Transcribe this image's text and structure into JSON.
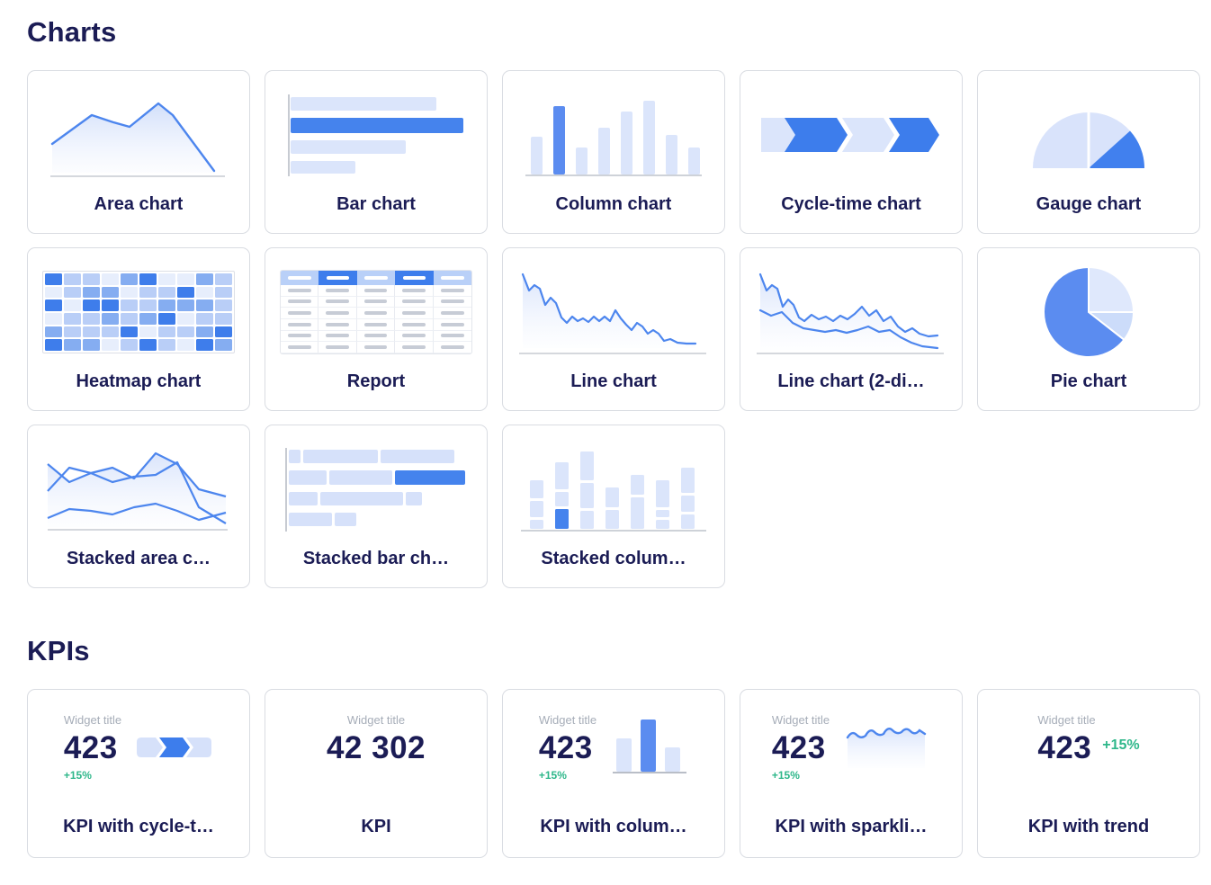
{
  "sections": {
    "charts": {
      "title": "Charts",
      "cards": [
        {
          "label": "Area chart"
        },
        {
          "label": "Bar chart"
        },
        {
          "label": "Column chart"
        },
        {
          "label": "Cycle-time chart"
        },
        {
          "label": "Gauge chart"
        },
        {
          "label": "Heatmap chart"
        },
        {
          "label": "Report"
        },
        {
          "label": "Line chart"
        },
        {
          "label": "Line chart (2-di…"
        },
        {
          "label": "Pie chart"
        },
        {
          "label": "Stacked area c…"
        },
        {
          "label": "Stacked bar ch…"
        },
        {
          "label": "Stacked colum…"
        }
      ]
    },
    "kpis": {
      "title": "KPIs",
      "cards": [
        {
          "widget_title": "Widget title",
          "value": "423",
          "delta": "+15%",
          "label": "KPI with cycle-t…"
        },
        {
          "widget_title": "Widget title",
          "value": "42 302",
          "label": "KPI"
        },
        {
          "widget_title": "Widget title",
          "value": "423",
          "delta": "+15%",
          "label": "KPI with colum…"
        },
        {
          "widget_title": "Widget title",
          "value": "423",
          "delta": "+15%",
          "label": "KPI with sparkli…"
        },
        {
          "widget_title": "Widget title",
          "value": "423",
          "delta": "+15%",
          "label": "KPI with trend"
        }
      ]
    }
  },
  "colors": {
    "accent_blue": "#4583ed",
    "dark_chevron_blue": "#3d7dec",
    "pie_blue": "#5b8cf0",
    "light_blue": "#dbe5fb",
    "lighter_blue": "#e9effd",
    "navy_text": "#1b1c55",
    "green_delta": "#2eb78a",
    "muted_gray": "#a6adb8",
    "card_border": "#d9dce2",
    "baseline_gray": "#c7cbd2"
  },
  "thumbnails": {
    "heatmap": {
      "shades": [
        "#e7eefc",
        "#b9cef7",
        "#85adf1",
        "#3e7deb"
      ],
      "pattern": [
        [
          3,
          1,
          1,
          0,
          2,
          3,
          0,
          0,
          2,
          1
        ],
        [
          0,
          1,
          2,
          2,
          0,
          1,
          1,
          3,
          0,
          1
        ],
        [
          3,
          0,
          3,
          3,
          1,
          1,
          2,
          2,
          2,
          1
        ],
        [
          0,
          1,
          1,
          2,
          1,
          2,
          3,
          0,
          1,
          1
        ],
        [
          2,
          1,
          1,
          1,
          3,
          0,
          1,
          1,
          2,
          3
        ],
        [
          3,
          2,
          2,
          0,
          1,
          3,
          1,
          0,
          3,
          2
        ]
      ]
    },
    "report": {
      "header_cols": 5,
      "body_rows": 6,
      "body_cols": 5
    }
  }
}
